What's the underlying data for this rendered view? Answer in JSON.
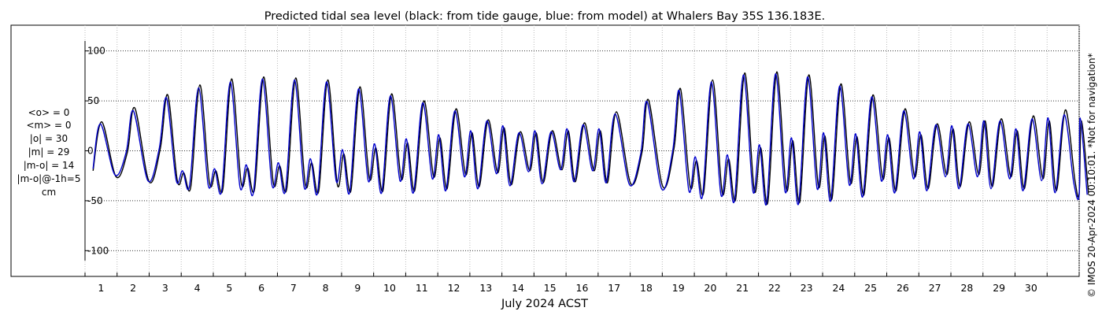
{
  "chart_data": {
    "type": "line",
    "title": "Predicted tidal sea level (black: from tide gauge, blue: from model) at Whalers Bay 35S 136.183E.",
    "xlabel": "July 2024 ACST",
    "ylabel": "",
    "xlim": [
      0,
      31
    ],
    "ylim": [
      -110,
      110
    ],
    "xticks": [
      "1",
      "2",
      "3",
      "4",
      "5",
      "6",
      "7",
      "8",
      "9",
      "10",
      "11",
      "12",
      "13",
      "14",
      "15",
      "16",
      "17",
      "18",
      "19",
      "20",
      "21",
      "22",
      "23",
      "24",
      "25",
      "26",
      "27",
      "28",
      "29",
      "30"
    ],
    "yticks": [
      "-100",
      "-50",
      "0",
      "50",
      "100"
    ],
    "ytick_values": [
      -100,
      -50,
      0,
      50,
      100
    ],
    "grid": true,
    "stats": [
      "<o> = 0",
      "<m> = 0",
      "|o| = 30",
      "|m| = 29",
      "|m-o| = 14",
      "|m-o|@-1h=5",
      "cm"
    ],
    "credit": "© IMOS 20-Apr-2024 00:10:01. *Not for navigation*",
    "series": [
      {
        "name": "from tide gauge",
        "color": "#000000",
        "peaks_x": [
          0.52,
          1.55,
          2.58,
          3.58,
          4.57,
          5.57,
          6.57,
          7.57,
          8.57,
          9.56,
          10.57,
          11.57,
          12.57,
          13.57,
          14.57,
          15.57,
          16.57,
          17.57,
          18.57,
          19.57,
          20.57,
          21.57,
          22.57,
          23.57,
          24.57,
          25.57,
          26.57,
          27.57,
          28.57,
          29.57,
          30.57
        ],
        "peaks": [
          29,
          43,
          56,
          66,
          72,
          74,
          73,
          71,
          64,
          57,
          50,
          42,
          31,
          19,
          20,
          28,
          39,
          51,
          62,
          71,
          78,
          79,
          76,
          67,
          56,
          42,
          27,
          29,
          32,
          35,
          41
        ],
        "secondary_peaks": [
          null,
          null,
          -22,
          -20,
          -17,
          -15,
          -12,
          -3,
          3,
          8,
          13,
          18,
          23,
          18,
          20,
          20,
          null,
          null,
          -10,
          -8,
          3,
          10,
          15,
          14,
          13,
          16,
          22,
          30,
          20,
          30,
          30
        ],
        "troughs": [
          -26,
          -31,
          -36,
          -38,
          -38,
          -38,
          -40,
          -40,
          -40,
          -40,
          -38,
          -36,
          -34,
          -32,
          -31,
          -32,
          -33,
          -36,
          -42,
          -48,
          -52,
          -51,
          -48,
          -44,
          -40,
          -38,
          -36,
          -36,
          -38,
          -40,
          -42
        ]
      },
      {
        "name": "from model",
        "color": "#0000cc",
        "peaks_x": [
          0.48,
          1.51,
          2.54,
          3.54,
          4.53,
          5.53,
          6.53,
          7.53,
          8.53,
          9.52,
          10.53,
          11.53,
          12.53,
          13.53,
          14.53,
          15.53,
          16.53,
          17.53,
          18.53,
          19.53,
          20.53,
          21.53,
          22.53,
          23.53,
          24.53,
          25.53,
          26.53,
          27.53,
          28.53,
          29.53,
          30.53
        ],
        "peaks": [
          27,
          40,
          53,
          63,
          69,
          72,
          71,
          69,
          62,
          55,
          48,
          40,
          30,
          18,
          19,
          26,
          37,
          49,
          60,
          69,
          76,
          77,
          74,
          65,
          54,
          40,
          26,
          27,
          30,
          32,
          36
        ],
        "secondary_peaks": [
          null,
          null,
          -20,
          -18,
          -14,
          -12,
          -8,
          1,
          7,
          12,
          16,
          20,
          25,
          20,
          22,
          22,
          null,
          null,
          -6,
          -4,
          6,
          13,
          18,
          17,
          16,
          19,
          25,
          30,
          22,
          33,
          33
        ],
        "troughs": [
          -24,
          -30,
          -35,
          -40,
          -42,
          -40,
          -42,
          -42,
          -42,
          -42,
          -40,
          -38,
          -35,
          -33,
          -31,
          -32,
          -34,
          -38,
          -46,
          -50,
          -53,
          -53,
          -50,
          -46,
          -42,
          -40,
          -38,
          -38,
          -40,
          -42,
          -44
        ]
      }
    ]
  }
}
